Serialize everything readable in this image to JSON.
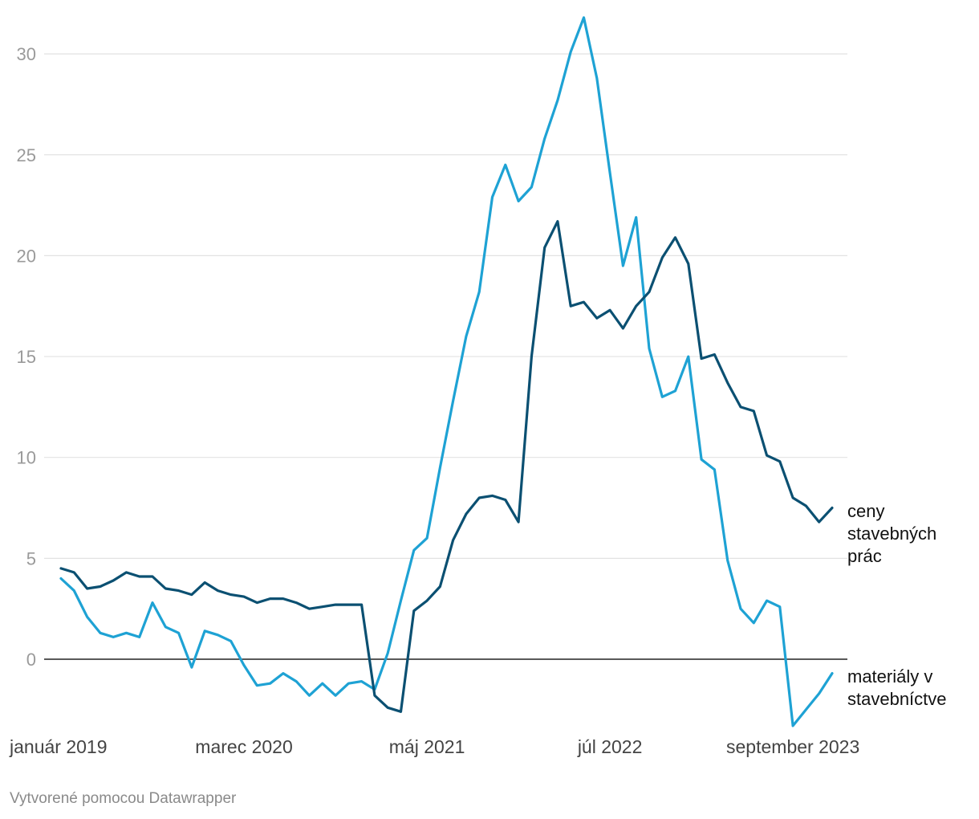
{
  "chart_data": {
    "type": "line",
    "title": "",
    "xlabel": "",
    "ylabel": "",
    "ylim": [
      -3.5,
      32
    ],
    "yticks": [
      0,
      5,
      10,
      15,
      20,
      25,
      30
    ],
    "x_start": "2019-01",
    "x_tick_labels": [
      {
        "label": "január 2019",
        "index": 0
      },
      {
        "label": "marec 2020",
        "index": 14
      },
      {
        "label": "máj 2021",
        "index": 28
      },
      {
        "label": "júl 2022",
        "index": 42
      },
      {
        "label": "september 2023",
        "index": 56
      }
    ],
    "series": [
      {
        "name": "ceny stavebných prác",
        "label_lines": [
          "ceny",
          "stavebných",
          "prác"
        ],
        "color": "#0b5072",
        "values": [
          4.5,
          4.3,
          3.5,
          3.6,
          3.9,
          4.3,
          4.1,
          4.1,
          3.5,
          3.4,
          3.2,
          3.8,
          3.4,
          3.2,
          3.1,
          2.8,
          3.0,
          3.0,
          2.8,
          2.5,
          2.6,
          2.7,
          2.7,
          2.7,
          -1.8,
          -2.4,
          -2.6,
          2.4,
          2.9,
          3.6,
          5.9,
          7.2,
          8.0,
          8.1,
          7.9,
          6.8,
          15.0,
          20.4,
          21.7,
          17.5,
          17.7,
          16.9,
          17.3,
          16.4,
          17.5,
          18.2,
          19.9,
          20.9,
          19.6,
          14.9,
          15.1,
          13.7,
          12.5,
          12.3,
          10.1,
          9.8,
          8.0,
          7.6,
          6.8,
          7.5
        ]
      },
      {
        "name": "materiály v stavebníctve",
        "label_lines": [
          "materiály v",
          "stavebníctve"
        ],
        "color": "#1ea2d4",
        "values": [
          4.0,
          3.4,
          2.1,
          1.3,
          1.1,
          1.3,
          1.1,
          2.8,
          1.6,
          1.3,
          -0.4,
          1.4,
          1.2,
          0.9,
          -0.3,
          -1.3,
          -1.2,
          -0.7,
          -1.1,
          -1.8,
          -1.2,
          -1.8,
          -1.2,
          -1.1,
          -1.5,
          0.3,
          2.9,
          5.4,
          6.0,
          9.5,
          12.8,
          16.0,
          18.2,
          22.9,
          24.5,
          22.7,
          23.4,
          25.8,
          27.7,
          30.1,
          31.8,
          28.8,
          24.1,
          19.5,
          21.9,
          15.4,
          13.0,
          13.3,
          15.0,
          9.9,
          9.4,
          4.9,
          2.5,
          1.8,
          2.9,
          2.6,
          -3.3,
          -2.5,
          -1.7,
          -0.7
        ]
      }
    ],
    "zero_line_color": "#222222",
    "grid": true
  },
  "footer": {
    "credit": "Vytvorené pomocou Datawrapper"
  }
}
